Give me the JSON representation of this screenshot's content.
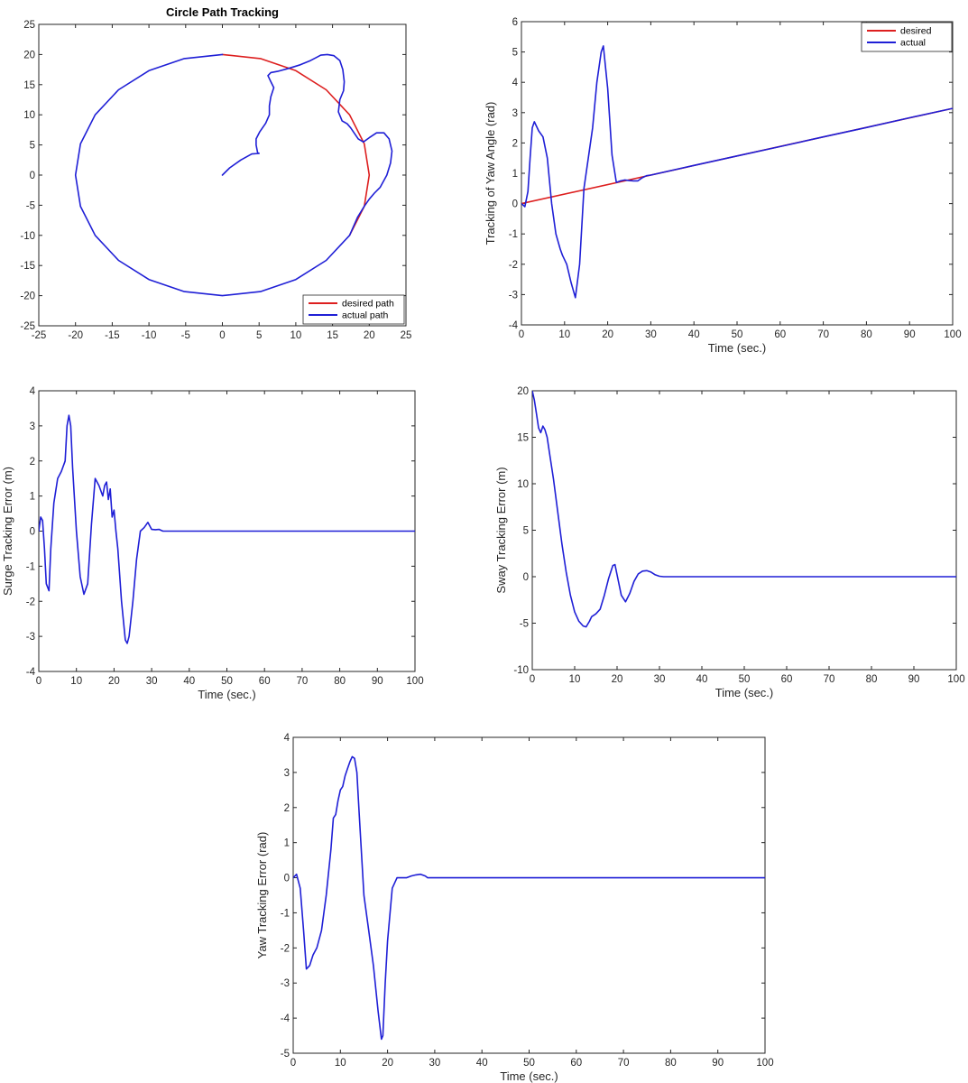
{
  "chart_data": [
    {
      "id": "circle",
      "type": "line",
      "title": "Circle Path Tracking",
      "xlabel": "",
      "ylabel": "",
      "xlim": [
        -25,
        25
      ],
      "ylim": [
        -25,
        25
      ],
      "xticks": [
        -25,
        -20,
        -15,
        -10,
        -5,
        0,
        5,
        10,
        15,
        20,
        25
      ],
      "yticks": [
        -25,
        -20,
        -15,
        -10,
        -5,
        0,
        5,
        10,
        15,
        20,
        25
      ],
      "legend": "bottom-right",
      "series": [
        {
          "name": "desired path",
          "color": "#dd1f1f",
          "x": [
            0,
            5.18,
            10,
            14.14,
            17.32,
            19.32,
            20,
            19.32,
            17.32
          ],
          "y": [
            20,
            19.32,
            17.32,
            14.14,
            10,
            5.18,
            0,
            -5.18,
            -10
          ]
        },
        {
          "name": "actual path",
          "color": "#1f1fd6",
          "x": [
            0,
            1,
            2.5,
            4,
            5,
            4.8,
            4.6,
            4.6,
            5.1,
            5.9,
            6.4,
            6.4,
            6.6,
            7.0,
            6.6,
            6.2,
            6.6,
            7.5,
            9.0,
            10.6,
            12.0,
            12.8,
            13.4,
            14.3,
            15.2,
            16.0,
            16.4,
            16.6,
            16.5,
            16.0,
            15.8,
            16.3,
            17.0,
            17.5,
            18.0,
            18.5,
            19.2,
            20.0,
            21.0,
            22.0,
            22.7,
            23.1,
            22.9,
            22.4,
            21.5,
            20.7,
            20.0,
            19.32,
            18.4,
            17.32,
            14.14,
            10,
            5.18,
            0,
            -5.18,
            -10,
            -14.14,
            -17.32,
            -19.32,
            -20,
            -19.32,
            -17.32,
            -14.14,
            -10,
            -5.18,
            0
          ],
          "y": [
            0,
            1.2,
            2.5,
            3.5,
            3.6,
            3.7,
            5.0,
            6.0,
            7.2,
            8.6,
            10.0,
            11.5,
            13.0,
            14.5,
            15.5,
            16.5,
            17.0,
            17.2,
            17.7,
            18.3,
            19.0,
            19.5,
            19.9,
            20.0,
            19.8,
            19.0,
            17.5,
            15.5,
            14.0,
            12.5,
            10.5,
            9.0,
            8.5,
            7.8,
            6.9,
            6.0,
            5.5,
            6.2,
            7.0,
            7.0,
            6.0,
            4.0,
            2.0,
            0,
            -2.0,
            -3.0,
            -4.0,
            -5.18,
            -7.0,
            -10,
            -14.14,
            -17.32,
            -19.32,
            -20,
            -19.32,
            -17.32,
            -14.14,
            -10,
            -5.18,
            0,
            5.18,
            10,
            14.14,
            17.32,
            19.32,
            20
          ]
        }
      ]
    },
    {
      "id": "yaw",
      "type": "line",
      "title": "",
      "xlabel": "Time (sec.)",
      "ylabel": "Tracking of Yaw Angle (rad)",
      "xlim": [
        0,
        100
      ],
      "ylim": [
        -4,
        6
      ],
      "xticks": [
        0,
        10,
        20,
        30,
        40,
        50,
        60,
        70,
        80,
        90,
        100
      ],
      "yticks": [
        -4,
        -3,
        -2,
        -1,
        0,
        1,
        2,
        3,
        4,
        5,
        6
      ],
      "legend": "top-right",
      "series": [
        {
          "name": "desired",
          "color": "#dd1f1f",
          "x": [
            0,
            100
          ],
          "y": [
            0,
            3.14
          ]
        },
        {
          "name": "actual",
          "color": "#1f1fd6",
          "x": [
            0,
            0.8,
            1.5,
            2.0,
            2.5,
            3.0,
            4.0,
            5.0,
            6.0,
            7.0,
            8.0,
            9.0,
            9.5,
            10.5,
            11.5,
            12.5,
            13.5,
            14.5,
            15.5,
            16.5,
            17.5,
            18.5,
            19.0,
            20.0,
            21.0,
            22.0,
            23.0,
            24.0,
            25.0,
            26.0,
            27.0,
            28.0,
            29.0,
            30.0,
            40,
            50,
            60,
            70,
            80,
            90,
            100
          ],
          "y": [
            0,
            -0.1,
            0.4,
            1.5,
            2.5,
            2.7,
            2.4,
            2.2,
            1.5,
            0,
            -1.0,
            -1.5,
            -1.7,
            -2.0,
            -2.6,
            -3.1,
            -2.0,
            0.5,
            1.5,
            2.5,
            4.0,
            5.0,
            5.2,
            3.8,
            1.6,
            0.7,
            0.75,
            0.78,
            0.76,
            0.75,
            0.75,
            0.85,
            0.92,
            0.94,
            1.26,
            1.57,
            1.88,
            2.2,
            2.51,
            2.83,
            3.14
          ]
        }
      ]
    },
    {
      "id": "surge",
      "type": "line",
      "title": "",
      "xlabel": "Time (sec.)",
      "ylabel": "Surge Tracking Error (m)",
      "xlim": [
        0,
        100
      ],
      "ylim": [
        -4,
        4
      ],
      "xticks": [
        0,
        10,
        20,
        30,
        40,
        50,
        60,
        70,
        80,
        90,
        100
      ],
      "yticks": [
        -4,
        -3,
        -2,
        -1,
        0,
        1,
        2,
        3,
        4
      ],
      "legend": "none",
      "series": [
        {
          "name": "",
          "color": "#1f1fd6",
          "x": [
            0,
            0.5,
            1.0,
            1.5,
            2.0,
            2.7,
            3.2,
            4.0,
            5.0,
            6.0,
            7.0,
            7.5,
            8.0,
            8.5,
            9.0,
            10.0,
            11.0,
            12.0,
            13.0,
            14.0,
            15.0,
            16.0,
            17.0,
            17.5,
            18.0,
            18.5,
            19.0,
            19.5,
            20.0,
            20.5,
            21.0,
            22.0,
            23.0,
            23.5,
            24.0,
            25.0,
            26.0,
            27.0,
            28.0,
            29.0,
            30.0,
            31.0,
            32.0,
            33.0,
            35.0,
            50,
            70,
            100
          ],
          "y": [
            0,
            0.4,
            0.3,
            -0.5,
            -1.5,
            -1.7,
            -0.5,
            0.8,
            1.5,
            1.7,
            2.0,
            3.0,
            3.3,
            3.0,
            1.8,
            0,
            -1.3,
            -1.8,
            -1.5,
            0.2,
            1.5,
            1.3,
            1.0,
            1.3,
            1.4,
            0.9,
            1.2,
            0.4,
            0.6,
            0.0,
            -0.5,
            -2.0,
            -3.1,
            -3.2,
            -3.0,
            -2.0,
            -0.8,
            0.0,
            0.1,
            0.25,
            0.05,
            0.04,
            0.05,
            0,
            0,
            0,
            0,
            0
          ]
        }
      ]
    },
    {
      "id": "sway",
      "type": "line",
      "title": "",
      "xlabel": "Time (sec.)",
      "ylabel": "Sway Tracking Error (m)",
      "xlim": [
        0,
        100
      ],
      "ylim": [
        -10,
        20
      ],
      "xticks": [
        0,
        10,
        20,
        30,
        40,
        50,
        60,
        70,
        80,
        90,
        100
      ],
      "yticks": [
        -10,
        -5,
        0,
        5,
        10,
        15,
        20
      ],
      "legend": "none",
      "series": [
        {
          "name": "",
          "color": "#1f1fd6",
          "x": [
            0,
            0.5,
            1.0,
            1.5,
            2.0,
            2.5,
            3.0,
            3.5,
            4.0,
            5.0,
            6.0,
            7.0,
            8.0,
            9.0,
            10.0,
            11.0,
            12.0,
            12.7,
            13.5,
            14.0,
            15.0,
            16.0,
            17.0,
            18.0,
            19.0,
            19.5,
            20.0,
            21.0,
            22.0,
            23.0,
            24.0,
            25.0,
            26.0,
            27.0,
            28.0,
            29.0,
            30.0,
            31.0,
            40,
            50,
            60,
            70,
            80,
            90,
            100
          ],
          "y": [
            20,
            19.0,
            17.5,
            16.0,
            15.5,
            16.2,
            15.8,
            15.0,
            13.5,
            10.5,
            7.0,
            3.5,
            0.5,
            -2.0,
            -3.8,
            -4.8,
            -5.3,
            -5.4,
            -4.8,
            -4.3,
            -4.0,
            -3.5,
            -2.0,
            -0.2,
            1.2,
            1.3,
            0.2,
            -2.0,
            -2.7,
            -1.8,
            -0.5,
            0.3,
            0.6,
            0.65,
            0.5,
            0.2,
            0.05,
            0,
            0,
            0,
            0,
            0,
            0,
            0,
            0
          ]
        }
      ]
    },
    {
      "id": "yawerr",
      "type": "line",
      "title": "",
      "xlabel": "Time (sec.)",
      "ylabel": "Yaw Tracking Error (rad)",
      "xlim": [
        0,
        100
      ],
      "ylim": [
        -5,
        4
      ],
      "xticks": [
        0,
        10,
        20,
        30,
        40,
        50,
        60,
        70,
        80,
        90,
        100
      ],
      "yticks": [
        -5,
        -4,
        -3,
        -2,
        -1,
        0,
        1,
        2,
        3,
        4
      ],
      "legend": "none",
      "series": [
        {
          "name": "",
          "color": "#1f1fd6",
          "x": [
            0,
            0.7,
            1.5,
            2.2,
            2.8,
            3.5,
            4.2,
            5.0,
            6.0,
            7.0,
            8.0,
            8.5,
            9.0,
            9.5,
            10.0,
            10.5,
            11.0,
            11.5,
            12.0,
            12.5,
            13.0,
            13.5,
            14.0,
            15.0,
            16.0,
            17.0,
            18.0,
            18.7,
            19.0,
            19.5,
            20.0,
            21.0,
            22.0,
            23.0,
            24.0,
            25.0,
            26.0,
            27.0,
            28.0,
            28.5,
            30.0,
            50,
            70,
            100
          ],
          "y": [
            0,
            0.1,
            -0.3,
            -1.5,
            -2.6,
            -2.5,
            -2.2,
            -2.0,
            -1.5,
            -0.5,
            0.8,
            1.7,
            1.8,
            2.2,
            2.5,
            2.6,
            2.9,
            3.1,
            3.3,
            3.45,
            3.4,
            3.0,
            1.8,
            -0.5,
            -1.5,
            -2.5,
            -3.8,
            -4.6,
            -4.5,
            -3.0,
            -1.8,
            -0.3,
            0.0,
            0.0,
            0.0,
            0.05,
            0.08,
            0.1,
            0.05,
            0.0,
            0.0,
            0.0,
            0.0,
            0.0
          ]
        }
      ]
    }
  ]
}
